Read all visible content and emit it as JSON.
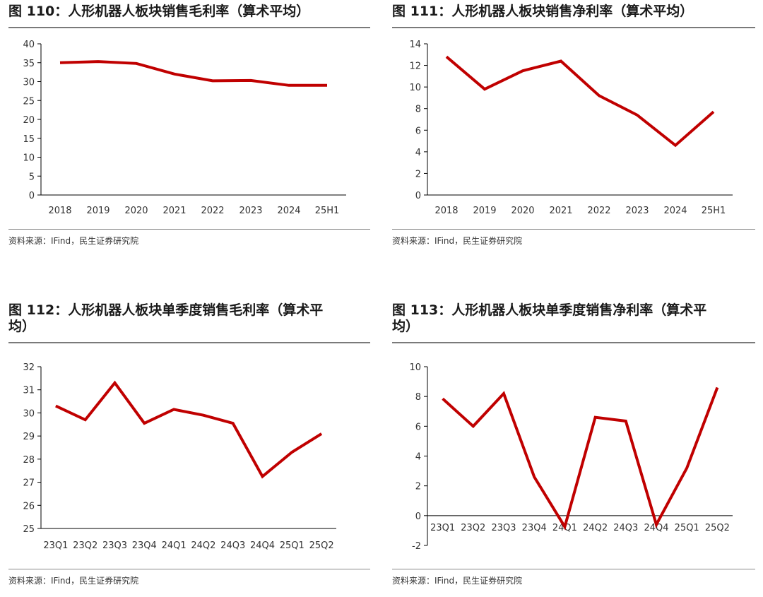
{
  "colors": {
    "line": "#c00000",
    "axis": "#000000",
    "rule": "#7a7a7a"
  },
  "chart_data": [
    {
      "type": "line",
      "title": "图 110：人形机器人板块销售毛利率（算术平均）",
      "categories": [
        "2018",
        "2019",
        "2020",
        "2021",
        "2022",
        "2023",
        "2024",
        "25H1"
      ],
      "values": [
        35.0,
        35.3,
        34.8,
        32.0,
        30.2,
        30.3,
        29.0,
        29.0
      ],
      "yticks": [
        "0",
        "5",
        "10",
        "15",
        "20",
        "25",
        "30",
        "35",
        "40"
      ],
      "ylim": [
        0,
        40
      ],
      "xlabel": "",
      "ylabel": "",
      "source": "资料来源：IFind，民生证券研究院"
    },
    {
      "type": "line",
      "title": "图 111：人形机器人板块销售净利率（算术平均）",
      "categories": [
        "2018",
        "2019",
        "2020",
        "2021",
        "2022",
        "2023",
        "2024",
        "25H1"
      ],
      "values": [
        12.8,
        9.8,
        11.5,
        12.4,
        9.2,
        7.4,
        4.6,
        7.7
      ],
      "yticks": [
        "0",
        "2",
        "4",
        "6",
        "8",
        "10",
        "12",
        "14"
      ],
      "ylim": [
        0,
        14
      ],
      "xlabel": "",
      "ylabel": "",
      "source": "资料来源：IFind，民生证券研究院"
    },
    {
      "type": "line",
      "title": "图 112：人形机器人板块单季度销售毛利率（算术平均）",
      "title_lines": [
        "图 112：人形机器人板块单季度销售毛利率（算术平",
        "均）"
      ],
      "categories": [
        "23Q1",
        "23Q2",
        "23Q3",
        "23Q4",
        "24Q1",
        "24Q2",
        "24Q3",
        "24Q4",
        "25Q1",
        "25Q2"
      ],
      "values": [
        30.3,
        29.7,
        31.3,
        29.55,
        30.15,
        29.9,
        29.55,
        27.25,
        28.3,
        29.1
      ],
      "yticks": [
        "25",
        "26",
        "27",
        "28",
        "29",
        "30",
        "31",
        "32"
      ],
      "ylim": [
        25,
        32
      ],
      "xlabel": "",
      "ylabel": "",
      "source": "资料来源：IFind，民生证券研究院"
    },
    {
      "type": "line",
      "title": "图 113：人形机器人板块单季度销售净利率（算术平均）",
      "title_lines": [
        "图 113：人形机器人板块单季度销售净利率（算术平",
        "均）"
      ],
      "categories": [
        "23Q1",
        "23Q2",
        "23Q3",
        "23Q4",
        "24Q1",
        "24Q2",
        "24Q3",
        "24Q4",
        "25Q1",
        "25Q2"
      ],
      "values": [
        7.85,
        6.0,
        8.2,
        2.6,
        -0.75,
        6.6,
        6.35,
        -0.6,
        3.2,
        8.6
      ],
      "yticks": [
        "-2",
        "0",
        "2",
        "4",
        "6",
        "8",
        "10"
      ],
      "ylim": [
        -2,
        10
      ],
      "xlabel": "",
      "ylabel": "",
      "source": "资料来源：IFind，民生证券研究院"
    }
  ]
}
